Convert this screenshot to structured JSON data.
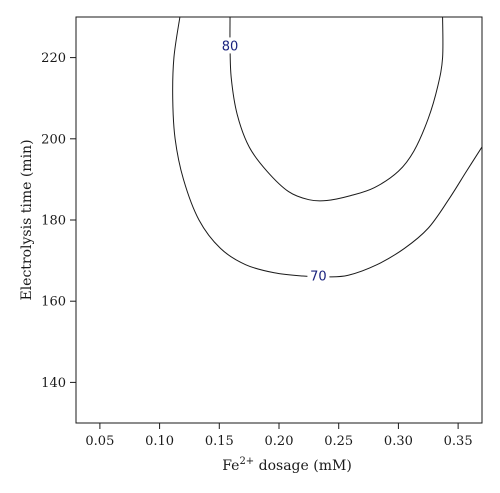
{
  "chart_data": {
    "type": "contour",
    "xlabel_base": "Fe",
    "xlabel_sup": "2+",
    "xlabel_rest": " dosage (mM)",
    "ylabel": "Electrolysis time (min)",
    "xlim": [
      0.03,
      0.37
    ],
    "ylim": [
      130,
      230
    ],
    "xticks": [
      0.05,
      0.1,
      0.15,
      0.2,
      0.25,
      0.3,
      0.35
    ],
    "xtick_labels": [
      "0.05",
      "0.10",
      "0.15",
      "0.20",
      "0.25",
      "0.30",
      "0.35"
    ],
    "yticks": [
      140,
      160,
      180,
      200,
      220
    ],
    "ytick_labels": [
      "140",
      "160",
      "180",
      "200",
      "220"
    ],
    "grid": false,
    "label_color": "#1a237e",
    "line_color": "#1a1a1a",
    "contours": [
      {
        "level": "70",
        "label_at": [
          0.233,
          166.3
        ],
        "points": [
          [
            0.117,
            230
          ],
          [
            0.112,
            220
          ],
          [
            0.111,
            210
          ],
          [
            0.113,
            200
          ],
          [
            0.12,
            190
          ],
          [
            0.133,
            180
          ],
          [
            0.151,
            173
          ],
          [
            0.172,
            169
          ],
          [
            0.196,
            167
          ],
          [
            0.22,
            166.2
          ],
          [
            0.24,
            166
          ],
          [
            0.258,
            166.4
          ],
          [
            0.282,
            169
          ],
          [
            0.305,
            173
          ],
          [
            0.325,
            178
          ],
          [
            0.342,
            185
          ],
          [
            0.357,
            192
          ],
          [
            0.37,
            198
          ]
        ]
      },
      {
        "level": "80",
        "label_at": [
          0.159,
          223
        ],
        "points": [
          [
            0.159,
            230
          ],
          [
            0.159,
            223
          ],
          [
            0.16,
            215
          ],
          [
            0.165,
            206
          ],
          [
            0.175,
            198
          ],
          [
            0.19,
            192
          ],
          [
            0.208,
            187
          ],
          [
            0.225,
            185
          ],
          [
            0.24,
            184.8
          ],
          [
            0.26,
            186
          ],
          [
            0.28,
            188
          ],
          [
            0.3,
            192
          ],
          [
            0.313,
            197
          ],
          [
            0.325,
            205
          ],
          [
            0.333,
            213
          ],
          [
            0.337,
            220
          ],
          [
            0.337,
            230
          ]
        ]
      }
    ]
  }
}
